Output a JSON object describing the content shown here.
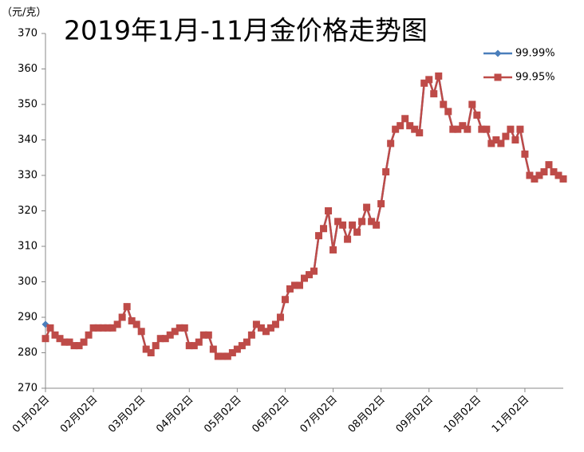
{
  "chart_data": {
    "type": "line",
    "title": "2019年1月-11月金价格走势图",
    "y_axis_label": "（元/克）",
    "categories": [
      "01月02日",
      null,
      null,
      null,
      null,
      null,
      null,
      null,
      null,
      null,
      "02月02日",
      null,
      null,
      null,
      null,
      null,
      null,
      null,
      null,
      null,
      "03月02日",
      null,
      null,
      null,
      null,
      null,
      null,
      null,
      null,
      null,
      "04月02日",
      null,
      null,
      null,
      null,
      null,
      null,
      null,
      null,
      null,
      "05月02日",
      null,
      null,
      null,
      null,
      null,
      null,
      null,
      null,
      null,
      "06月02日",
      null,
      null,
      null,
      null,
      null,
      null,
      null,
      null,
      null,
      "07月02日",
      null,
      null,
      null,
      null,
      null,
      null,
      null,
      null,
      null,
      "08月02日",
      null,
      null,
      null,
      null,
      null,
      null,
      null,
      null,
      null,
      "09月02日",
      null,
      null,
      null,
      null,
      null,
      null,
      null,
      null,
      null,
      "10月02日",
      null,
      null,
      null,
      null,
      null,
      null,
      null,
      null,
      null,
      "11月02日",
      null,
      null,
      null,
      null,
      null,
      null,
      null,
      null
    ],
    "series": [
      {
        "name": "99.99%",
        "color": "#4a7ebb",
        "marker": "diamond",
        "values": [
          288,
          287,
          285,
          284,
          283,
          283,
          282,
          282,
          283,
          285,
          287,
          287,
          287,
          287,
          287,
          288,
          290,
          293,
          289,
          288,
          286,
          281,
          280,
          282,
          284,
          284,
          285,
          286,
          287,
          287,
          282,
          282,
          283,
          285,
          285,
          281,
          279,
          279,
          279,
          280,
          281,
          282,
          283,
          285,
          288,
          287,
          286,
          287,
          288,
          290,
          295,
          298,
          299,
          299,
          301,
          302,
          303,
          313,
          315,
          320,
          309,
          317,
          316,
          312,
          316,
          314,
          317,
          321,
          317,
          316,
          322,
          331,
          339,
          343,
          344,
          346,
          344,
          343,
          342,
          356,
          357,
          353,
          358,
          350,
          348,
          343,
          343,
          344,
          343,
          350,
          347,
          343,
          343,
          339,
          340,
          339,
          341,
          343,
          340,
          343,
          336,
          330,
          329,
          330,
          331,
          333,
          331,
          330,
          329
        ]
      },
      {
        "name": "99.95%",
        "color": "#be4b48",
        "marker": "square",
        "values": [
          284,
          287,
          285,
          284,
          283,
          283,
          282,
          282,
          283,
          285,
          287,
          287,
          287,
          287,
          287,
          288,
          290,
          293,
          289,
          288,
          286,
          281,
          280,
          282,
          284,
          284,
          285,
          286,
          287,
          287,
          282,
          282,
          283,
          285,
          285,
          281,
          279,
          279,
          279,
          280,
          281,
          282,
          283,
          285,
          288,
          287,
          286,
          287,
          288,
          290,
          295,
          298,
          299,
          299,
          301,
          302,
          303,
          313,
          315,
          320,
          309,
          317,
          316,
          312,
          316,
          314,
          317,
          321,
          317,
          316,
          322,
          331,
          339,
          343,
          344,
          346,
          344,
          343,
          342,
          356,
          357,
          353,
          358,
          350,
          348,
          343,
          343,
          344,
          343,
          350,
          347,
          343,
          343,
          339,
          340,
          339,
          341,
          343,
          340,
          343,
          336,
          330,
          329,
          330,
          331,
          333,
          331,
          330,
          329
        ]
      }
    ],
    "ylim": [
      270,
      370
    ],
    "yticks": [
      270,
      280,
      290,
      300,
      310,
      320,
      330,
      340,
      350,
      360,
      370
    ],
    "legend": "right"
  }
}
